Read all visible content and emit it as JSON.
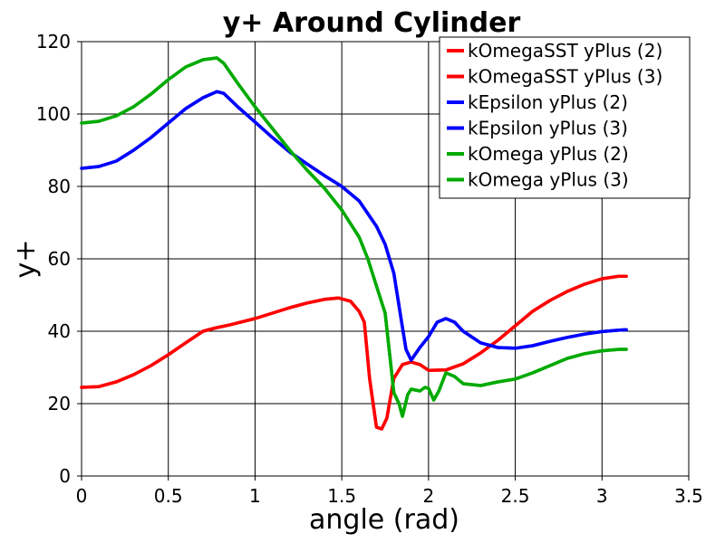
{
  "chart_data": {
    "type": "line",
    "title": "y+ Around Cylinder",
    "xlabel": "angle (rad)",
    "ylabel": "y+",
    "xlim": [
      0,
      3.5
    ],
    "ylim": [
      0,
      120
    ],
    "xticks": [
      "0",
      "0.5",
      "1",
      "1.5",
      "2",
      "2.5",
      "3",
      "3.5"
    ],
    "yticks": [
      "0",
      "20",
      "40",
      "60",
      "80",
      "100",
      "120"
    ],
    "grid": true,
    "legend_position": "top-right",
    "series": [
      {
        "name": "kOmegaSST yPlus (2)",
        "color": "#ff0000",
        "x": [
          0,
          0.1,
          0.2,
          0.3,
          0.4,
          0.5,
          0.6,
          0.7,
          0.78,
          0.85,
          1.0,
          1.1,
          1.2,
          1.3,
          1.4,
          1.48,
          1.55,
          1.6,
          1.63,
          1.66,
          1.7,
          1.73,
          1.76,
          1.8,
          1.85,
          1.9,
          1.95,
          2.0,
          2.1,
          2.2,
          2.3,
          2.4,
          2.5,
          2.6,
          2.7,
          2.8,
          2.9,
          3.0,
          3.1,
          3.14
        ],
        "values": [
          24.5,
          24.7,
          26,
          28,
          30.5,
          33.5,
          36.8,
          40,
          41,
          41.7,
          43.5,
          45,
          46.5,
          47.8,
          48.8,
          49.2,
          48.3,
          45.5,
          42.5,
          27,
          13.5,
          13,
          16,
          27,
          30.8,
          31.5,
          30.8,
          29.2,
          29.3,
          31,
          34,
          37.5,
          41.5,
          45.5,
          48.5,
          51,
          53,
          54.5,
          55.2,
          55.2
        ]
      },
      {
        "name": "kOmegaSST yPlus (3)",
        "color": "#ff0000",
        "x": [
          0,
          0.1,
          0.2,
          0.3,
          0.4,
          0.5,
          0.6,
          0.7,
          0.78,
          0.85,
          1.0,
          1.1,
          1.2,
          1.3,
          1.4,
          1.48,
          1.55,
          1.6,
          1.63,
          1.66,
          1.7,
          1.73,
          1.76,
          1.8,
          1.85,
          1.9,
          1.95,
          2.0,
          2.1,
          2.2,
          2.3,
          2.4,
          2.5,
          2.6,
          2.7,
          2.8,
          2.9,
          3.0,
          3.1,
          3.14
        ],
        "values": [
          24.5,
          24.7,
          26,
          28,
          30.5,
          33.5,
          36.8,
          40,
          41,
          41.7,
          43.5,
          45,
          46.5,
          47.8,
          48.8,
          49.2,
          48.3,
          45.5,
          42.5,
          27,
          13.5,
          13,
          16,
          27,
          30.8,
          31.5,
          30.8,
          29.2,
          29.3,
          31,
          34,
          37.5,
          41.5,
          45.5,
          48.5,
          51,
          53,
          54.5,
          55.2,
          55.2
        ]
      },
      {
        "name": "kEpsilon yPlus (2)",
        "color": "#0000ff",
        "x": [
          0,
          0.1,
          0.2,
          0.3,
          0.4,
          0.5,
          0.6,
          0.7,
          0.78,
          0.82,
          0.9,
          1.0,
          1.1,
          1.2,
          1.3,
          1.4,
          1.5,
          1.6,
          1.7,
          1.75,
          1.8,
          1.84,
          1.87,
          1.9,
          1.95,
          2.0,
          2.05,
          2.1,
          2.15,
          2.2,
          2.3,
          2.4,
          2.5,
          2.6,
          2.7,
          2.8,
          2.9,
          3.0,
          3.1,
          3.14
        ],
        "values": [
          85,
          85.5,
          87,
          90,
          93.5,
          97.5,
          101.5,
          104.5,
          106.2,
          105.7,
          102,
          97.8,
          93.5,
          89.5,
          86.2,
          83,
          80,
          76,
          69,
          64,
          56,
          44,
          35,
          32,
          35.5,
          38.5,
          42.5,
          43.5,
          42.5,
          40,
          36.8,
          35.5,
          35.3,
          36,
          37.2,
          38.3,
          39.2,
          39.9,
          40.3,
          40.4
        ]
      },
      {
        "name": "kEpsilon yPlus (3)",
        "color": "#0000ff",
        "x": [
          0,
          0.1,
          0.2,
          0.3,
          0.4,
          0.5,
          0.6,
          0.7,
          0.78,
          0.82,
          0.9,
          1.0,
          1.1,
          1.2,
          1.3,
          1.4,
          1.5,
          1.6,
          1.7,
          1.75,
          1.8,
          1.84,
          1.87,
          1.9,
          1.95,
          2.0,
          2.05,
          2.1,
          2.15,
          2.2,
          2.3,
          2.4,
          2.5,
          2.6,
          2.7,
          2.8,
          2.9,
          3.0,
          3.1,
          3.14
        ],
        "values": [
          85,
          85.5,
          87,
          90,
          93.5,
          97.5,
          101.5,
          104.5,
          106.2,
          105.7,
          102,
          97.8,
          93.5,
          89.5,
          86.2,
          83,
          80,
          76,
          69,
          64,
          56,
          44,
          35,
          32,
          35.5,
          38.5,
          42.5,
          43.5,
          42.5,
          40,
          36.8,
          35.5,
          35.3,
          36,
          37.2,
          38.3,
          39.2,
          39.9,
          40.3,
          40.4
        ]
      },
      {
        "name": "kOmega yPlus (2)",
        "color": "#00aa00",
        "x": [
          0,
          0.1,
          0.2,
          0.3,
          0.4,
          0.5,
          0.6,
          0.7,
          0.78,
          0.82,
          0.9,
          1.0,
          1.1,
          1.2,
          1.3,
          1.4,
          1.5,
          1.6,
          1.65,
          1.7,
          1.75,
          1.78,
          1.8,
          1.83,
          1.85,
          1.88,
          1.9,
          1.95,
          1.98,
          2.0,
          2.03,
          2.06,
          2.1,
          2.15,
          2.2,
          2.3,
          2.4,
          2.5,
          2.6,
          2.7,
          2.8,
          2.9,
          3.0,
          3.1,
          3.14
        ],
        "values": [
          97.5,
          98,
          99.5,
          102,
          105.5,
          109.5,
          113,
          115,
          115.5,
          114,
          108.5,
          102,
          96,
          90,
          84.5,
          79.5,
          73.5,
          66,
          60,
          52.5,
          45,
          32,
          23,
          20,
          16.5,
          22.5,
          24,
          23.5,
          24.5,
          24.2,
          21,
          23.5,
          28.5,
          27.5,
          25.5,
          25,
          26,
          26.8,
          28.5,
          30.5,
          32.5,
          33.8,
          34.6,
          35,
          35
        ]
      },
      {
        "name": "kOmega yPlus (3)",
        "color": "#00aa00",
        "x": [
          0,
          0.1,
          0.2,
          0.3,
          0.4,
          0.5,
          0.6,
          0.7,
          0.78,
          0.82,
          0.9,
          1.0,
          1.1,
          1.2,
          1.3,
          1.4,
          1.5,
          1.6,
          1.65,
          1.7,
          1.75,
          1.78,
          1.8,
          1.83,
          1.85,
          1.88,
          1.9,
          1.95,
          1.98,
          2.0,
          2.03,
          2.06,
          2.1,
          2.15,
          2.2,
          2.3,
          2.4,
          2.5,
          2.6,
          2.7,
          2.8,
          2.9,
          3.0,
          3.1,
          3.14
        ],
        "values": [
          97.5,
          98,
          99.5,
          102,
          105.5,
          109.5,
          113,
          115,
          115.5,
          114,
          108.5,
          102,
          96,
          90,
          84.5,
          79.5,
          73.5,
          66,
          60,
          52.5,
          45,
          32,
          23,
          20,
          16.5,
          22.5,
          24,
          23.5,
          24.5,
          24.2,
          21,
          23.5,
          28.5,
          27.5,
          25.5,
          25,
          26,
          26.8,
          28.5,
          30.5,
          32.5,
          33.8,
          34.6,
          35,
          35
        ]
      }
    ]
  }
}
